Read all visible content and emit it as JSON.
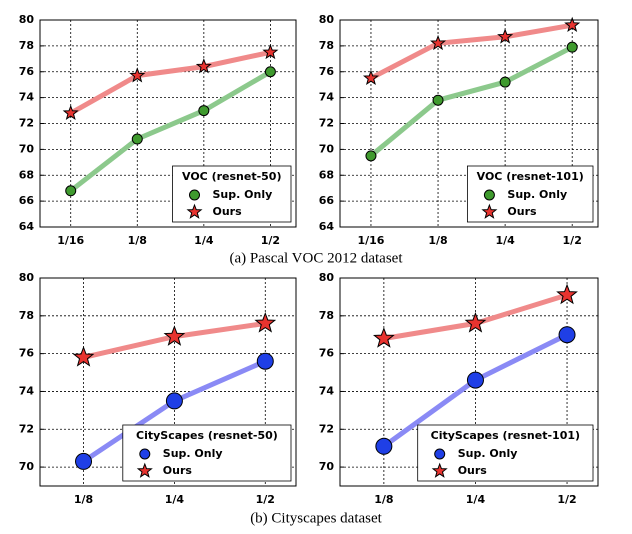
{
  "chart_data": [
    {
      "type": "line",
      "legend_title": "VOC (resnet-50)",
      "legend": "lower right",
      "grid": true,
      "categories": [
        "1/16",
        "1/8",
        "1/4",
        "1/2"
      ],
      "ylim": [
        64,
        80
      ],
      "yticks": [
        64,
        66,
        68,
        70,
        72,
        74,
        76,
        78,
        80
      ],
      "series": [
        {
          "name": "Sup. Only",
          "color": "#8cc98c",
          "marker": "circle",
          "marker_color": "#3f9a2e",
          "values": [
            66.8,
            70.8,
            73.0,
            76.0
          ]
        },
        {
          "name": "Ours",
          "color": "#f08a8a",
          "marker": "star",
          "marker_color": "#e8332f",
          "values": [
            72.8,
            75.7,
            76.4,
            77.5
          ]
        }
      ]
    },
    {
      "type": "line",
      "legend_title": "VOC (resnet-101)",
      "legend": "lower right",
      "grid": true,
      "categories": [
        "1/16",
        "1/8",
        "1/4",
        "1/2"
      ],
      "ylim": [
        64,
        80
      ],
      "yticks": [
        64,
        66,
        68,
        70,
        72,
        74,
        76,
        78,
        80
      ],
      "series": [
        {
          "name": "Sup. Only",
          "color": "#8cc98c",
          "marker": "circle",
          "marker_color": "#3f9a2e",
          "values": [
            69.5,
            73.8,
            75.2,
            77.9
          ]
        },
        {
          "name": "Ours",
          "color": "#f08a8a",
          "marker": "star",
          "marker_color": "#e8332f",
          "values": [
            75.5,
            78.2,
            78.7,
            79.6
          ]
        }
      ]
    },
    {
      "type": "line",
      "legend_title": "CityScapes (resnet-50)",
      "legend": "lower right",
      "grid": true,
      "categories": [
        "1/8",
        "1/4",
        "1/2"
      ],
      "ylim": [
        69,
        80
      ],
      "yticks": [
        70,
        72,
        74,
        76,
        78,
        80
      ],
      "series": [
        {
          "name": "Sup. Only",
          "color": "#8a8af5",
          "marker": "circle",
          "marker_color": "#1f3fe6",
          "values": [
            70.3,
            73.5,
            75.6
          ]
        },
        {
          "name": "Ours",
          "color": "#f08a8a",
          "marker": "star",
          "marker_color": "#e8332f",
          "values": [
            75.8,
            76.9,
            77.6
          ]
        }
      ]
    },
    {
      "type": "line",
      "legend_title": "CityScapes (resnet-101)",
      "legend": "lower right",
      "grid": true,
      "categories": [
        "1/8",
        "1/4",
        "1/2"
      ],
      "ylim": [
        69,
        80
      ],
      "yticks": [
        70,
        72,
        74,
        76,
        78,
        80
      ],
      "series": [
        {
          "name": "Sup. Only",
          "color": "#8a8af5",
          "marker": "circle",
          "marker_color": "#1f3fe6",
          "values": [
            71.1,
            74.6,
            77.0
          ]
        },
        {
          "name": "Ours",
          "color": "#f08a8a",
          "marker": "star",
          "marker_color": "#e8332f",
          "values": [
            76.8,
            77.6,
            79.1
          ]
        }
      ]
    }
  ],
  "captions": [
    "(a) Pascal VOC 2012 dataset",
    "(b) Cityscapes dataset"
  ]
}
